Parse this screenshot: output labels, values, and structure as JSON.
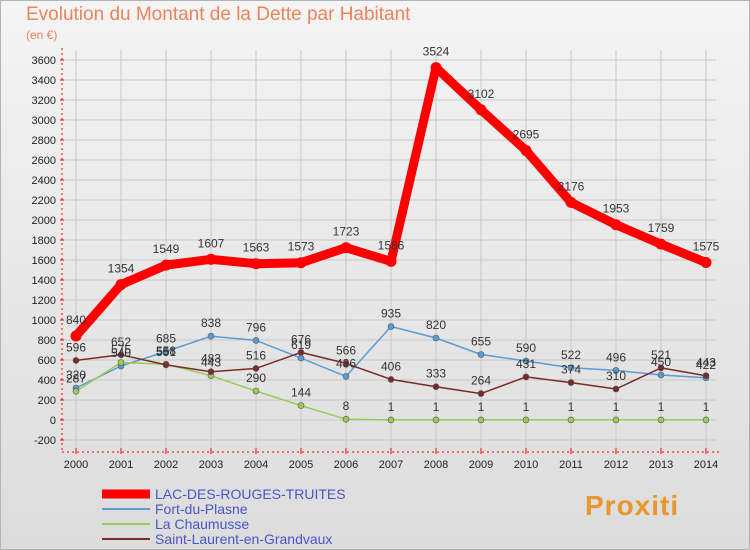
{
  "title": "Evolution du Montant de la Dette par Habitant",
  "unit": "(en €)",
  "brand": "Proxiti",
  "colors": {
    "title": "#e8855a",
    "axis": "#ff0000",
    "grid": "#c8c8c8"
  },
  "chart_data": {
    "type": "line",
    "title": "Evolution du Montant de la Dette par Habitant",
    "ylabel": "(en €)",
    "xlabel": "",
    "ylim": [
      -200,
      3600
    ],
    "ystep": 200,
    "grid": true,
    "legend": "bottom-left",
    "x": [
      "2000",
      "2001",
      "2002",
      "2003",
      "2004",
      "2005",
      "2006",
      "2007",
      "2008",
      "2009",
      "2010",
      "2011",
      "2012",
      "2013",
      "2014"
    ],
    "series": [
      {
        "name": "LAC-DES-ROUGES-TRUITES",
        "color": "#ff0000",
        "values": [
          840,
          1354,
          1549,
          1607,
          1563,
          1573,
          1723,
          1586,
          3524,
          3102,
          2695,
          2176,
          1953,
          1759,
          1575
        ]
      },
      {
        "name": "Fort-du-Plasne",
        "color": "#5b9bd5",
        "values": [
          320,
          540,
          685,
          838,
          796,
          619,
          436,
          935,
          820,
          655,
          590,
          522,
          496,
          450,
          422
        ]
      },
      {
        "name": "La Chaumusse",
        "color": "#99cc55",
        "values": [
          287,
          575,
          558,
          443,
          290,
          144,
          8,
          1,
          1,
          1,
          1,
          1,
          1,
          1,
          1
        ]
      },
      {
        "name": "Saint-Laurent-en-Grandvaux",
        "color": "#7b2a2a",
        "values": [
          596,
          652,
          551,
          483,
          516,
          676,
          566,
          406,
          333,
          264,
          431,
          374,
          310,
          521,
          443
        ]
      }
    ]
  }
}
